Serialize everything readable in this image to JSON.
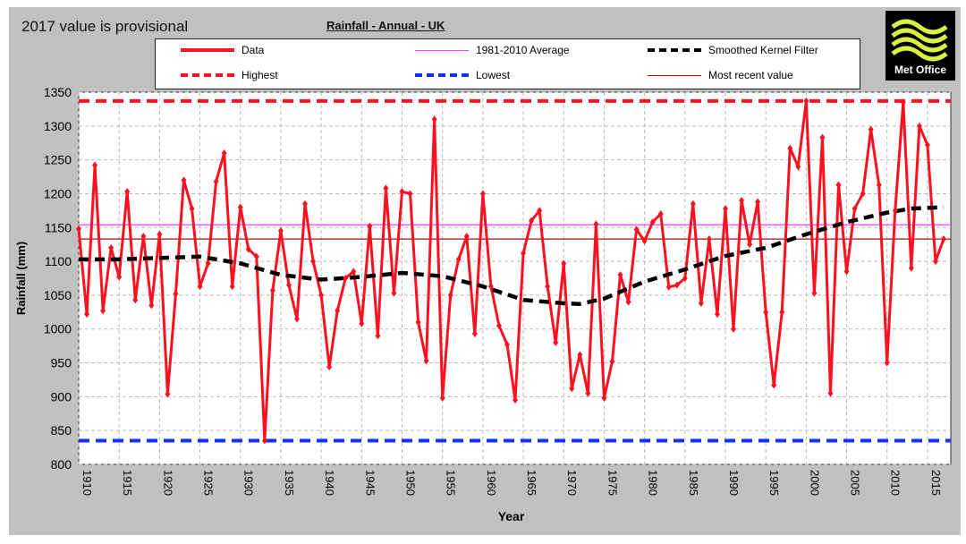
{
  "note": "2017 value is provisional",
  "logo_text": "Met Office",
  "chart_data": {
    "type": "line",
    "title": "Rainfall - Annual - UK",
    "xlabel": "Year",
    "ylabel": "Rainfall (mm)",
    "xlim": [
      1910,
      2017
    ],
    "ylim": [
      800,
      1350
    ],
    "yticks": [
      800,
      850,
      900,
      950,
      1000,
      1050,
      1100,
      1150,
      1200,
      1250,
      1300,
      1350
    ],
    "xticks": [
      1910,
      1915,
      1920,
      1925,
      1930,
      1935,
      1940,
      1945,
      1950,
      1955,
      1960,
      1965,
      1970,
      1975,
      1980,
      1985,
      1990,
      1995,
      2000,
      2005,
      2010,
      2015
    ],
    "grid": true,
    "legend_position": "top",
    "legend": [
      "Data",
      "1981-2010 Average",
      "Smoothed Kernel Filter",
      "Highest",
      "Lowest",
      "Most recent value"
    ],
    "colors": {
      "data": "#ff1020",
      "average": "#ff40ff",
      "smoothed": "#000000",
      "highest": "#ff1020",
      "lowest": "#1030ff",
      "recent": "#a01010"
    },
    "start_year": 1910,
    "values": [
      1148,
      1022,
      1242,
      1027,
      1120,
      1077,
      1203,
      1043,
      1137,
      1035,
      1140,
      904,
      1052,
      1220,
      1178,
      1063,
      1097,
      1218,
      1260,
      1063,
      1180,
      1118,
      1107,
      835,
      1057,
      1145,
      1065,
      1015,
      1185,
      1100,
      1050,
      944,
      1027,
      1075,
      1085,
      1008,
      1152,
      990,
      1208,
      1053,
      1203,
      1200,
      1010,
      953,
      1310,
      898,
      1050,
      1103,
      1137,
      993,
      1200,
      1063,
      1005,
      977,
      895,
      1112,
      1160,
      1175,
      1063,
      980,
      1097,
      912,
      962,
      905,
      1155,
      898,
      952,
      1080,
      1040,
      1147,
      1130,
      1158,
      1170,
      1062,
      1065,
      1075,
      1185,
      1038,
      1133,
      1022,
      1178,
      1000,
      1190,
      1125,
      1188,
      1025,
      917,
      1025,
      1267,
      1240,
      1337,
      1053,
      1283,
      905,
      1213,
      1085,
      1178,
      1200,
      1295,
      1213,
      950,
      1175,
      1335,
      1090,
      1300,
      1272,
      1100,
      1133
    ],
    "smoothed": [
      [
        1910,
        1103
      ],
      [
        1915,
        1103
      ],
      [
        1920,
        1105
      ],
      [
        1925,
        1107
      ],
      [
        1930,
        1097
      ],
      [
        1935,
        1080
      ],
      [
        1940,
        1073
      ],
      [
        1945,
        1077
      ],
      [
        1950,
        1083
      ],
      [
        1955,
        1078
      ],
      [
        1960,
        1063
      ],
      [
        1965,
        1043
      ],
      [
        1970,
        1038
      ],
      [
        1972,
        1037
      ],
      [
        1975,
        1045
      ],
      [
        1980,
        1070
      ],
      [
        1985,
        1088
      ],
      [
        1990,
        1108
      ],
      [
        1995,
        1120
      ],
      [
        2000,
        1140
      ],
      [
        2005,
        1158
      ],
      [
        2010,
        1172
      ],
      [
        2013,
        1178
      ],
      [
        2017,
        1180
      ]
    ],
    "highest": 1337,
    "lowest": 835,
    "average": 1154,
    "most_recent": 1133
  }
}
